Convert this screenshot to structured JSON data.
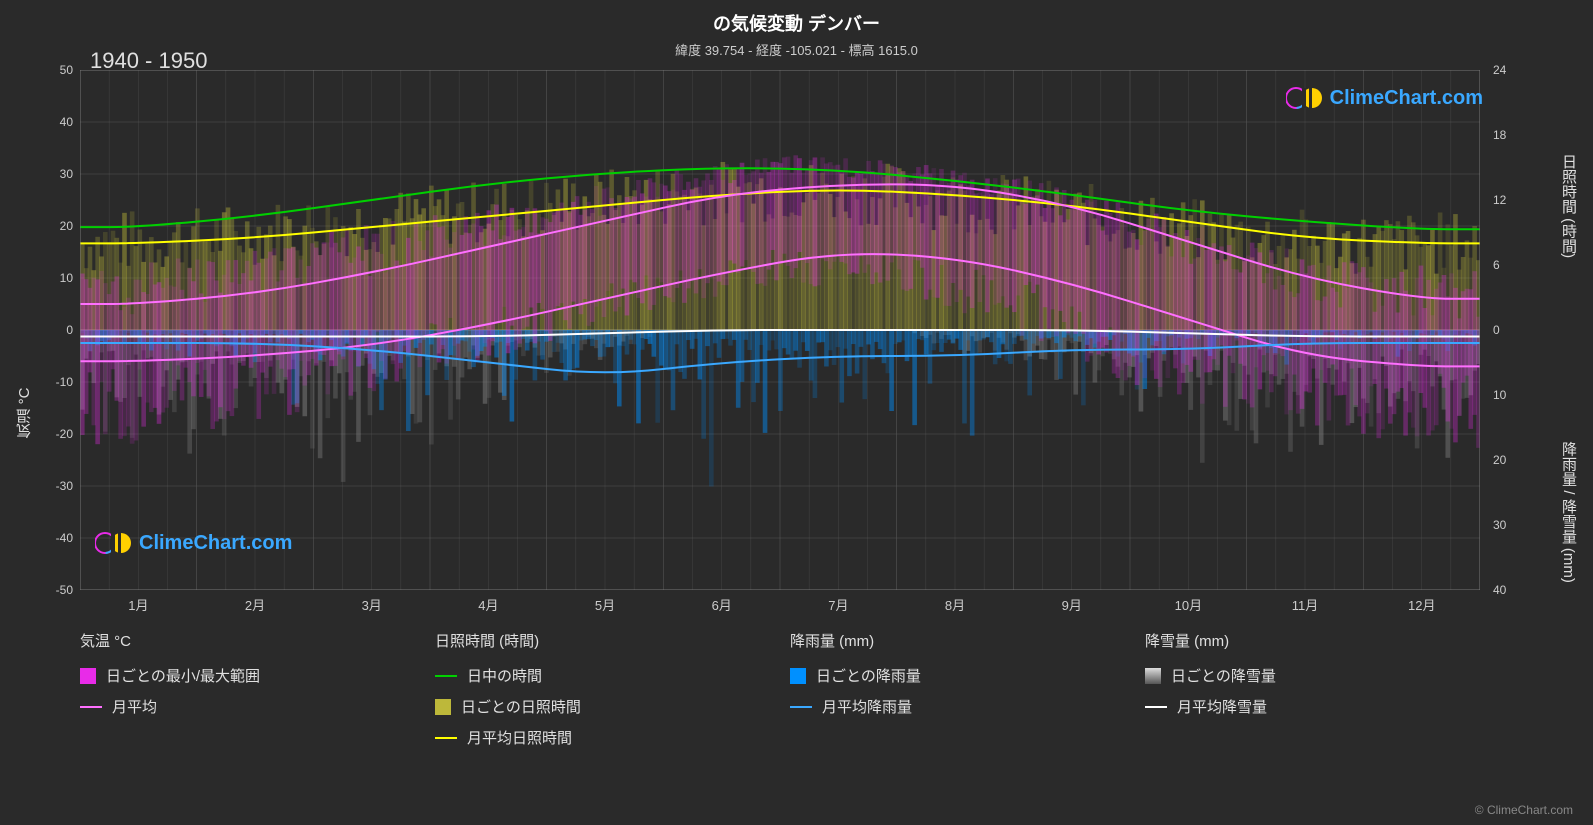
{
  "title": "の気候変動 デンバー",
  "subtitle": "緯度 39.754 - 経度 -105.021 - 標高 1615.0",
  "year_range": "1940 - 1950",
  "watermark_text": "ClimeChart.com",
  "copyright": "© ClimeChart.com",
  "chart": {
    "background_color": "#2a2a2a",
    "grid_color": "#555555",
    "text_color": "#e0e0e0",
    "left_axis": {
      "label": "気温 °C",
      "min": -50,
      "max": 50,
      "step": 10,
      "ticks": [
        -50,
        -40,
        -30,
        -20,
        -10,
        0,
        10,
        20,
        30,
        40,
        50
      ]
    },
    "right_axis_top": {
      "label": "日照時間 (時間)",
      "min": 0,
      "max": 24,
      "step": 6,
      "ticks": [
        0,
        6,
        12,
        18,
        24
      ]
    },
    "right_axis_bottom": {
      "label": "降雨量 / 降雪量 (mm)",
      "min": 0,
      "max": 40,
      "step": 10,
      "ticks": [
        0,
        10,
        20,
        30,
        40
      ]
    },
    "x_axis": {
      "labels": [
        "1月",
        "2月",
        "3月",
        "4月",
        "5月",
        "6月",
        "7月",
        "8月",
        "9月",
        "10月",
        "11月",
        "12月"
      ]
    },
    "series": {
      "temp_range": {
        "color": "#e82be8",
        "opacity": 0.35,
        "monthly_high_avg": [
          5,
          7,
          11,
          16,
          21,
          27,
          31,
          30,
          26,
          19,
          11,
          6
        ],
        "monthly_low_avg": [
          -9,
          -7,
          -4,
          1,
          6,
          11,
          15,
          14,
          9,
          2,
          -4,
          -8
        ],
        "daily_max_spike": [
          15,
          18,
          22,
          25,
          28,
          32,
          35,
          34,
          31,
          26,
          20,
          16
        ],
        "daily_min_spike": [
          -22,
          -20,
          -15,
          -8,
          -2,
          5,
          9,
          8,
          0,
          -10,
          -16,
          -20
        ]
      },
      "temp_monthly_avg": {
        "color": "#ff6fff",
        "width": 2,
        "values": [
          -6,
          -5,
          -3,
          1,
          6,
          11,
          15,
          14,
          9,
          2,
          -5,
          -7
        ],
        "values_high": [
          5,
          7,
          11,
          16,
          21,
          26,
          28,
          28,
          24,
          17,
          10,
          6
        ]
      },
      "daylight": {
        "color": "#00d000",
        "width": 2,
        "values_hours": [
          9.5,
          10.5,
          12,
          13.5,
          14.5,
          15,
          14.8,
          13.8,
          12.5,
          11,
          10,
          9.3
        ]
      },
      "sunshine_daily": {
        "color": "#bdb83a",
        "opacity": 0.6,
        "fill_to": 0,
        "monthly_avg_hours": [
          8,
          8.5,
          9.5,
          10.5,
          11.5,
          12.5,
          13,
          12.5,
          11.5,
          10,
          8.5,
          8
        ]
      },
      "sunshine_monthly_avg": {
        "color": "#ffff00",
        "width": 2,
        "values_hours": [
          8,
          8.5,
          9.5,
          10.5,
          11.5,
          12.5,
          13,
          12.5,
          11.5,
          10,
          8.5,
          8
        ]
      },
      "rain_daily": {
        "color": "#0090ff",
        "opacity": 0.5,
        "monthly_avg_mm": [
          1,
          1.5,
          2,
          3,
          5,
          4,
          5,
          5,
          3,
          2,
          1.5,
          1
        ],
        "daily_max_mm": [
          8,
          10,
          15,
          20,
          30,
          25,
          35,
          30,
          22,
          15,
          10,
          8
        ]
      },
      "rain_monthly_avg": {
        "color": "#3aa8ff",
        "width": 2,
        "values_mm": [
          2,
          2,
          3,
          5,
          7,
          5,
          4,
          4,
          3,
          3,
          2,
          2
        ]
      },
      "snow_daily": {
        "color": "#808080",
        "opacity": 0.5,
        "monthly_avg_mm": [
          3,
          3,
          4,
          3,
          1,
          0,
          0,
          0,
          0.5,
          2,
          3,
          3
        ],
        "daily_max_mm": [
          25,
          22,
          28,
          20,
          10,
          0,
          0,
          0,
          8,
          18,
          25,
          25
        ]
      },
      "snow_monthly_avg": {
        "color": "#ffffff",
        "width": 2,
        "values_mm": [
          1,
          1,
          1,
          1,
          0.5,
          0,
          0,
          0,
          0,
          0.5,
          1,
          1
        ]
      }
    }
  },
  "legend": {
    "columns": [
      {
        "header": "気温 °C",
        "items": [
          {
            "type": "swatch",
            "color": "#e82be8",
            "label": "日ごとの最小/最大範囲"
          },
          {
            "type": "line",
            "color": "#ff6fff",
            "label": "月平均"
          }
        ]
      },
      {
        "header": "日照時間 (時間)",
        "items": [
          {
            "type": "line",
            "color": "#00d000",
            "label": "日中の時間"
          },
          {
            "type": "swatch",
            "color": "#bdb83a",
            "label": "日ごとの日照時間"
          },
          {
            "type": "line",
            "color": "#ffff00",
            "label": "月平均日照時間"
          }
        ]
      },
      {
        "header": "降雨量 (mm)",
        "items": [
          {
            "type": "swatch",
            "color": "#0090ff",
            "label": "日ごとの降雨量"
          },
          {
            "type": "line",
            "color": "#3aa8ff",
            "label": "月平均降雨量"
          }
        ]
      },
      {
        "header": "降雪量 (mm)",
        "items": [
          {
            "type": "swatch-gradient",
            "color": "#808080",
            "label": "日ごとの降雪量"
          },
          {
            "type": "line",
            "color": "#ffffff",
            "label": "月平均降雪量"
          }
        ]
      }
    ]
  }
}
